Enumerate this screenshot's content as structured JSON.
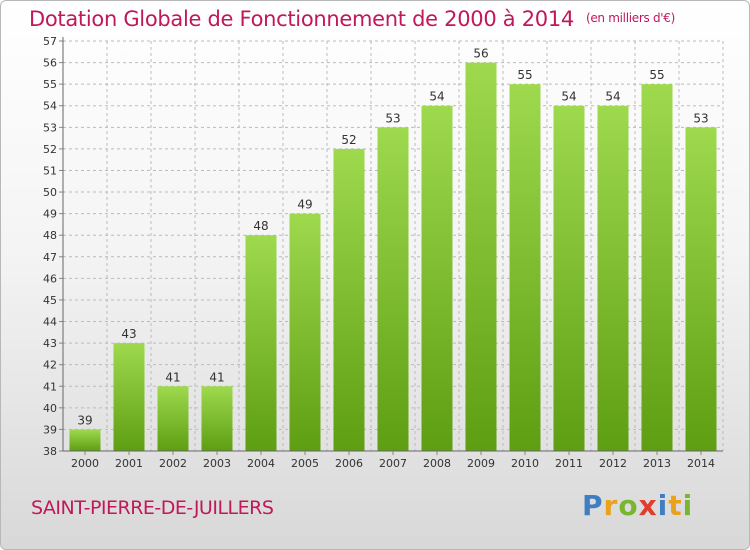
{
  "title": "Dotation Globale de Fonctionnement de 2000 à 2014",
  "unit_note": "(en milliers d'€)",
  "commune": "SAINT-PIERRE-DE-JUILLERS",
  "logo": {
    "text": "Proxiti",
    "letters": [
      {
        "ch": "P",
        "color": "#3f7fc1"
      },
      {
        "ch": "r",
        "color": "#e8a21c"
      },
      {
        "ch": "o",
        "color": "#7ab52f"
      },
      {
        "ch": "x",
        "color": "#e23c2a"
      },
      {
        "ch": "i",
        "color": "#3f7fc1"
      },
      {
        "ch": "t",
        "color": "#e8a21c"
      },
      {
        "ch": "i",
        "color": "#7ab52f"
      }
    ]
  },
  "colors": {
    "title": "#c0185a",
    "bar_top": "#9ed94e",
    "bar_bottom": "#5e9e12",
    "grid": "#bbbbbb"
  },
  "chart_data": {
    "type": "bar",
    "categories": [
      "2000",
      "2001",
      "2002",
      "2003",
      "2004",
      "2005",
      "2006",
      "2007",
      "2008",
      "2009",
      "2010",
      "2011",
      "2012",
      "2013",
      "2014"
    ],
    "values": [
      39,
      43,
      41,
      41,
      48,
      49,
      52,
      53,
      54,
      56,
      55,
      54,
      54,
      55,
      53
    ],
    "data_labels": [
      "39",
      "43",
      "41",
      "41",
      "48",
      "49",
      "52",
      "53",
      "54",
      "56",
      "55",
      "54",
      "54",
      "55",
      "53"
    ],
    "yticks": [
      38,
      39,
      40,
      41,
      42,
      43,
      44,
      45,
      46,
      47,
      48,
      49,
      50,
      51,
      52,
      53,
      54,
      55,
      56,
      57
    ],
    "ylim": [
      38,
      57
    ],
    "grid": true,
    "legend": "none"
  }
}
